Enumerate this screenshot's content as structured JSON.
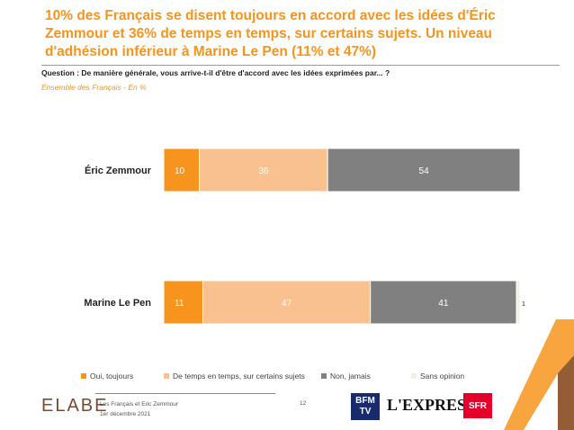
{
  "header": {
    "title": "10% des Français se disent toujours en accord avec les idées d'Éric Zemmour et 36% de temps en temps, sur certains sujets. Un niveau d'adhésion inférieur à Marine Le Pen (11% et 47%)",
    "question": "Question : De manière générale, vous arrive-t-il d'être d'accord avec les idées exprimées par... ?",
    "scope": "Ensemble des Français - En %"
  },
  "chart_data": {
    "type": "bar",
    "orientation": "horizontal",
    "stacked": true,
    "categories": [
      "Éric Zemmour",
      "Marine Le Pen"
    ],
    "series": [
      {
        "name": "Oui, toujours",
        "values": [
          10,
          11
        ],
        "color": "#f7941d"
      },
      {
        "name": "De temps en temps, sur certains sujets",
        "values": [
          36,
          47
        ],
        "color": "#f9c18f"
      },
      {
        "name": "Non, jamais",
        "values": [
          54,
          41
        ],
        "color": "#808080"
      },
      {
        "name": "Sans opinion",
        "values": [
          0,
          1
        ],
        "color": "#f2f0e0"
      }
    ],
    "data_labels": [
      [
        "10",
        "36",
        "54",
        ""
      ],
      [
        "11",
        "47",
        "41",
        "1"
      ]
    ],
    "xlim": [
      0,
      100
    ],
    "legend_position": "bottom",
    "grid": false
  },
  "footer": {
    "brand": "ELABE",
    "study": "Les Français et Eric Zemmour",
    "date": "1er décembre 2021",
    "page": "12",
    "partners": [
      "BFM TV",
      "L'EXPRESS",
      "SFR"
    ]
  }
}
